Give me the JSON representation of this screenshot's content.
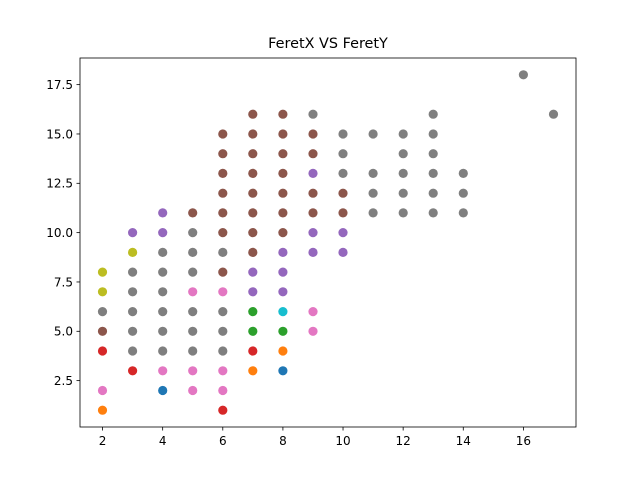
{
  "chart_data": {
    "type": "scatter",
    "title": "FeretX VS FeretY",
    "xlabel": "",
    "ylabel": "",
    "xlim": [
      1.25,
      17.75
    ],
    "ylim": [
      0.15,
      18.85
    ],
    "xticks": [
      2,
      4,
      6,
      8,
      10,
      12,
      14,
      16
    ],
    "yticks": [
      2.5,
      5.0,
      7.5,
      10.0,
      12.5,
      15.0,
      17.5
    ],
    "ytick_labels": [
      "2.5",
      "5.0",
      "7.5",
      "10.0",
      "12.5",
      "15.0",
      "17.5"
    ],
    "grid": false,
    "legend": "none",
    "points": [
      {
        "x": 2,
        "y": 1,
        "color": "#ff7f0e"
      },
      {
        "x": 2,
        "y": 2,
        "color": "#e377c2"
      },
      {
        "x": 2,
        "y": 4,
        "color": "#d62728"
      },
      {
        "x": 2,
        "y": 5,
        "color": "#8c564b"
      },
      {
        "x": 2,
        "y": 6,
        "color": "#7f7f7f"
      },
      {
        "x": 2,
        "y": 7,
        "color": "#bcbd22"
      },
      {
        "x": 2,
        "y": 8,
        "color": "#bcbd22"
      },
      {
        "x": 3,
        "y": 3,
        "color": "#d62728"
      },
      {
        "x": 3,
        "y": 4,
        "color": "#7f7f7f"
      },
      {
        "x": 3,
        "y": 5,
        "color": "#7f7f7f"
      },
      {
        "x": 3,
        "y": 6,
        "color": "#7f7f7f"
      },
      {
        "x": 3,
        "y": 7,
        "color": "#7f7f7f"
      },
      {
        "x": 3,
        "y": 8,
        "color": "#7f7f7f"
      },
      {
        "x": 3,
        "y": 9,
        "color": "#bcbd22"
      },
      {
        "x": 3,
        "y": 10,
        "color": "#9467bd"
      },
      {
        "x": 4,
        "y": 2,
        "color": "#1f77b4"
      },
      {
        "x": 4,
        "y": 3,
        "color": "#e377c2"
      },
      {
        "x": 4,
        "y": 4,
        "color": "#7f7f7f"
      },
      {
        "x": 4,
        "y": 5,
        "color": "#7f7f7f"
      },
      {
        "x": 4,
        "y": 6,
        "color": "#7f7f7f"
      },
      {
        "x": 4,
        "y": 7,
        "color": "#7f7f7f"
      },
      {
        "x": 4,
        "y": 8,
        "color": "#7f7f7f"
      },
      {
        "x": 4,
        "y": 9,
        "color": "#7f7f7f"
      },
      {
        "x": 4,
        "y": 10,
        "color": "#9467bd"
      },
      {
        "x": 4,
        "y": 11,
        "color": "#9467bd"
      },
      {
        "x": 5,
        "y": 2,
        "color": "#e377c2"
      },
      {
        "x": 5,
        "y": 3,
        "color": "#e377c2"
      },
      {
        "x": 5,
        "y": 4,
        "color": "#7f7f7f"
      },
      {
        "x": 5,
        "y": 5,
        "color": "#7f7f7f"
      },
      {
        "x": 5,
        "y": 6,
        "color": "#7f7f7f"
      },
      {
        "x": 5,
        "y": 7,
        "color": "#e377c2"
      },
      {
        "x": 5,
        "y": 8,
        "color": "#7f7f7f"
      },
      {
        "x": 5,
        "y": 9,
        "color": "#7f7f7f"
      },
      {
        "x": 5,
        "y": 10,
        "color": "#7f7f7f"
      },
      {
        "x": 5,
        "y": 11,
        "color": "#8c564b"
      },
      {
        "x": 6,
        "y": 1,
        "color": "#d62728"
      },
      {
        "x": 6,
        "y": 2,
        "color": "#e377c2"
      },
      {
        "x": 6,
        "y": 3,
        "color": "#e377c2"
      },
      {
        "x": 6,
        "y": 4,
        "color": "#7f7f7f"
      },
      {
        "x": 6,
        "y": 5,
        "color": "#7f7f7f"
      },
      {
        "x": 6,
        "y": 6,
        "color": "#7f7f7f"
      },
      {
        "x": 6,
        "y": 7,
        "color": "#e377c2"
      },
      {
        "x": 6,
        "y": 8,
        "color": "#8c564b"
      },
      {
        "x": 6,
        "y": 9,
        "color": "#7f7f7f"
      },
      {
        "x": 6,
        "y": 10,
        "color": "#8c564b"
      },
      {
        "x": 6,
        "y": 11,
        "color": "#8c564b"
      },
      {
        "x": 6,
        "y": 12,
        "color": "#8c564b"
      },
      {
        "x": 6,
        "y": 13,
        "color": "#8c564b"
      },
      {
        "x": 6,
        "y": 14,
        "color": "#8c564b"
      },
      {
        "x": 6,
        "y": 15,
        "color": "#8c564b"
      },
      {
        "x": 7,
        "y": 3,
        "color": "#ff7f0e"
      },
      {
        "x": 7,
        "y": 4,
        "color": "#d62728"
      },
      {
        "x": 7,
        "y": 5,
        "color": "#2ca02c"
      },
      {
        "x": 7,
        "y": 6,
        "color": "#2ca02c"
      },
      {
        "x": 7,
        "y": 7,
        "color": "#9467bd"
      },
      {
        "x": 7,
        "y": 8,
        "color": "#9467bd"
      },
      {
        "x": 7,
        "y": 9,
        "color": "#8c564b"
      },
      {
        "x": 7,
        "y": 10,
        "color": "#8c564b"
      },
      {
        "x": 7,
        "y": 11,
        "color": "#8c564b"
      },
      {
        "x": 7,
        "y": 12,
        "color": "#8c564b"
      },
      {
        "x": 7,
        "y": 13,
        "color": "#8c564b"
      },
      {
        "x": 7,
        "y": 14,
        "color": "#8c564b"
      },
      {
        "x": 7,
        "y": 15,
        "color": "#8c564b"
      },
      {
        "x": 7,
        "y": 16,
        "color": "#8c564b"
      },
      {
        "x": 8,
        "y": 3,
        "color": "#1f77b4"
      },
      {
        "x": 8,
        "y": 4,
        "color": "#ff7f0e"
      },
      {
        "x": 8,
        "y": 5,
        "color": "#2ca02c"
      },
      {
        "x": 8,
        "y": 6,
        "color": "#17becf"
      },
      {
        "x": 8,
        "y": 7,
        "color": "#9467bd"
      },
      {
        "x": 8,
        "y": 8,
        "color": "#9467bd"
      },
      {
        "x": 8,
        "y": 9,
        "color": "#9467bd"
      },
      {
        "x": 8,
        "y": 10,
        "color": "#8c564b"
      },
      {
        "x": 8,
        "y": 11,
        "color": "#8c564b"
      },
      {
        "x": 8,
        "y": 12,
        "color": "#8c564b"
      },
      {
        "x": 8,
        "y": 13,
        "color": "#8c564b"
      },
      {
        "x": 8,
        "y": 14,
        "color": "#8c564b"
      },
      {
        "x": 8,
        "y": 15,
        "color": "#8c564b"
      },
      {
        "x": 8,
        "y": 16,
        "color": "#8c564b"
      },
      {
        "x": 9,
        "y": 5,
        "color": "#e377c2"
      },
      {
        "x": 9,
        "y": 6,
        "color": "#e377c2"
      },
      {
        "x": 9,
        "y": 9,
        "color": "#9467bd"
      },
      {
        "x": 9,
        "y": 10,
        "color": "#9467bd"
      },
      {
        "x": 9,
        "y": 11,
        "color": "#8c564b"
      },
      {
        "x": 9,
        "y": 12,
        "color": "#8c564b"
      },
      {
        "x": 9,
        "y": 13,
        "color": "#9467bd"
      },
      {
        "x": 9,
        "y": 14,
        "color": "#8c564b"
      },
      {
        "x": 9,
        "y": 15,
        "color": "#8c564b"
      },
      {
        "x": 9,
        "y": 16,
        "color": "#7f7f7f"
      },
      {
        "x": 10,
        "y": 9,
        "color": "#9467bd"
      },
      {
        "x": 10,
        "y": 10,
        "color": "#9467bd"
      },
      {
        "x": 10,
        "y": 11,
        "color": "#8c564b"
      },
      {
        "x": 10,
        "y": 12,
        "color": "#8c564b"
      },
      {
        "x": 10,
        "y": 13,
        "color": "#7f7f7f"
      },
      {
        "x": 10,
        "y": 14,
        "color": "#7f7f7f"
      },
      {
        "x": 10,
        "y": 15,
        "color": "#7f7f7f"
      },
      {
        "x": 11,
        "y": 11,
        "color": "#7f7f7f"
      },
      {
        "x": 11,
        "y": 12,
        "color": "#7f7f7f"
      },
      {
        "x": 11,
        "y": 13,
        "color": "#7f7f7f"
      },
      {
        "x": 11,
        "y": 15,
        "color": "#7f7f7f"
      },
      {
        "x": 12,
        "y": 11,
        "color": "#7f7f7f"
      },
      {
        "x": 12,
        "y": 12,
        "color": "#7f7f7f"
      },
      {
        "x": 12,
        "y": 13,
        "color": "#7f7f7f"
      },
      {
        "x": 12,
        "y": 14,
        "color": "#7f7f7f"
      },
      {
        "x": 12,
        "y": 15,
        "color": "#7f7f7f"
      },
      {
        "x": 13,
        "y": 11,
        "color": "#7f7f7f"
      },
      {
        "x": 13,
        "y": 12,
        "color": "#7f7f7f"
      },
      {
        "x": 13,
        "y": 13,
        "color": "#7f7f7f"
      },
      {
        "x": 13,
        "y": 14,
        "color": "#7f7f7f"
      },
      {
        "x": 13,
        "y": 15,
        "color": "#7f7f7f"
      },
      {
        "x": 13,
        "y": 16,
        "color": "#7f7f7f"
      },
      {
        "x": 14,
        "y": 11,
        "color": "#7f7f7f"
      },
      {
        "x": 14,
        "y": 12,
        "color": "#7f7f7f"
      },
      {
        "x": 14,
        "y": 13,
        "color": "#7f7f7f"
      },
      {
        "x": 16,
        "y": 18,
        "color": "#7f7f7f"
      },
      {
        "x": 17,
        "y": 16,
        "color": "#7f7f7f"
      }
    ]
  }
}
